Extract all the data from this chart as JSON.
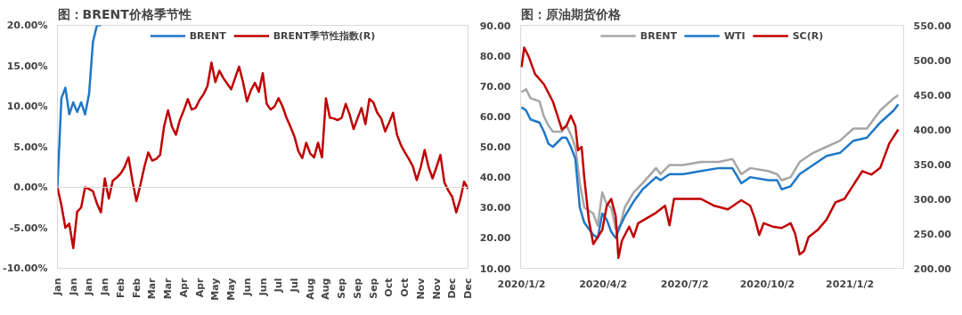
{
  "chart_data": [
    {
      "type": "line",
      "title": "图：BRENT价格季节性",
      "legend": "top",
      "grid": false,
      "ylim": [
        -10,
        20
      ],
      "categories": [
        "Jan",
        null,
        null,
        null,
        "Jan",
        null,
        null,
        null,
        "Jan",
        null,
        null,
        null,
        "Jan",
        null,
        null,
        null,
        "Feb",
        null,
        null,
        null,
        "Feb",
        null,
        null,
        null,
        "Mar",
        null,
        null,
        null,
        "Mar",
        null,
        null,
        null,
        "Apr",
        null,
        null,
        null,
        "Apr",
        null,
        null,
        null,
        "May",
        null,
        null,
        null,
        "May",
        null,
        null,
        null,
        "Jun",
        null,
        null,
        null,
        "Jun",
        null,
        null,
        null,
        "Jul",
        null,
        null,
        null,
        "Jul",
        null,
        null,
        null,
        "Aug",
        null,
        null,
        null,
        "Aug",
        null,
        null,
        null,
        "Sep",
        null,
        null,
        null,
        "Sep",
        null,
        null,
        null,
        "Sep",
        null,
        null,
        null,
        "Oct",
        null,
        null,
        null,
        "Oct",
        null,
        null,
        null,
        "Nov",
        null,
        null,
        null,
        "Nov",
        null,
        null,
        null,
        "Dec",
        null,
        null,
        null,
        "Dec"
      ],
      "yticks": [
        {
          "value": -10,
          "label": "-10.00%"
        },
        {
          "value": -5,
          "label": "-5.00%"
        },
        {
          "value": 0,
          "label": "0.00%"
        },
        {
          "value": 5,
          "label": "5.00%"
        },
        {
          "value": 10,
          "label": "10.00%"
        },
        {
          "value": 15,
          "label": "15.00%"
        },
        {
          "value": 20,
          "label": "20.00%"
        }
      ],
      "ref_lines": [
        {
          "axis": "y",
          "value": 0,
          "color": "#d9d9d9"
        }
      ],
      "series": [
        {
          "name": "BRENT",
          "color": "#1f77c8",
          "values": [
            0,
            11,
            12.3,
            9,
            10.5,
            9.3,
            10.5,
            9,
            11.5,
            18,
            20,
            20,
            null,
            null,
            null,
            null,
            null,
            null,
            null,
            null,
            null,
            null,
            null,
            null,
            null,
            null,
            null,
            null,
            null,
            null,
            null,
            null,
            null,
            null,
            null,
            null,
            null,
            null,
            null,
            null,
            null,
            null,
            null,
            null,
            null,
            null,
            null,
            null,
            null,
            null,
            null,
            null,
            null,
            null,
            null,
            null,
            null,
            null,
            null,
            null,
            null,
            null,
            null,
            null,
            null,
            null,
            null,
            null,
            null,
            null,
            null,
            null,
            null,
            null,
            null,
            null,
            null,
            null,
            null,
            null,
            null,
            null,
            null,
            null,
            null,
            null,
            null,
            null,
            null,
            null,
            null,
            null,
            null,
            null,
            null,
            null,
            null,
            null,
            null,
            null,
            null,
            null,
            null,
            null,
            null
          ]
        },
        {
          "name": "BRENT季节性指数(R)",
          "color": "#c00000",
          "values": [
            0,
            -2.2,
            -5,
            -4.5,
            -7.5,
            -3,
            -2.5,
            0,
            -0.2,
            -0.5,
            -2,
            -3.1,
            1.1,
            -1.4,
            0.8,
            1.2,
            1.7,
            2.5,
            3.7,
            0.8,
            -1.7,
            0.3,
            2.5,
            4.3,
            3.3,
            3.5,
            4,
            7.5,
            9.5,
            7.5,
            6.5,
            8.3,
            9.5,
            10.9,
            9.6,
            9.8,
            10.8,
            11.5,
            12.5,
            15.4,
            13,
            14.4,
            13.5,
            12.8,
            12.1,
            13.5,
            14.9,
            13,
            10.6,
            12,
            12.9,
            11.8,
            14.1,
            10.3,
            9.6,
            10,
            11,
            10,
            8.6,
            7.5,
            6.3,
            4.5,
            3.6,
            5.5,
            4.2,
            3.7,
            5.5,
            3.7,
            11,
            8.6,
            8.5,
            8.3,
            8.6,
            10.3,
            9,
            7.2,
            8.5,
            9.8,
            7.8,
            10.9,
            10.5,
            9.2,
            8.5,
            6.9,
            8,
            9.2,
            6.5,
            5.2,
            4.3,
            3.5,
            2.6,
            0.9,
            2.5,
            4.6,
            2.5,
            1.1,
            2.5,
            4,
            0.6,
            -0.4,
            -1.2,
            -3.1,
            -1.5,
            0.7,
            -0.2
          ]
        }
      ]
    },
    {
      "type": "line",
      "title": "图：原油期货价格",
      "legend": "top",
      "grid": false,
      "xlim": [
        "2020-01-01",
        "2021-03-03"
      ],
      "ylim": [
        10,
        90
      ],
      "y2lim": [
        200,
        550
      ],
      "xticks": [
        {
          "value": "2020-01-02",
          "label": "2020/1/2"
        },
        {
          "value": "2020-04-02",
          "label": "2020/4/2"
        },
        {
          "value": "2020-07-02",
          "label": "2020/7/2"
        },
        {
          "value": "2020-10-02",
          "label": "2020/10/2"
        },
        {
          "value": "2021-01-02",
          "label": "2021/1/2"
        }
      ],
      "yticks": [
        {
          "value": 10,
          "label": "10.00"
        },
        {
          "value": 20,
          "label": "20.00"
        },
        {
          "value": 30,
          "label": "30.00"
        },
        {
          "value": 40,
          "label": "40.00"
        },
        {
          "value": 50,
          "label": "50.00"
        },
        {
          "value": 60,
          "label": "60.00"
        },
        {
          "value": 70,
          "label": "70.00"
        },
        {
          "value": 80,
          "label": "80.00"
        },
        {
          "value": 90,
          "label": "90.00"
        }
      ],
      "y2ticks": [
        {
          "value": 200,
          "label": "200.00"
        },
        {
          "value": 250,
          "label": "250.00"
        },
        {
          "value": 300,
          "label": "300.00"
        },
        {
          "value": 350,
          "label": "350.00"
        },
        {
          "value": 400,
          "label": "400.00"
        },
        {
          "value": 450,
          "label": "450.00"
        },
        {
          "value": 500,
          "label": "500.00"
        },
        {
          "value": 550,
          "label": "550.00"
        }
      ],
      "x": [
        "2020-01-02",
        "2020-01-07",
        "2020-01-12",
        "2020-01-22",
        "2020-01-27",
        "2020-02-01",
        "2020-02-06",
        "2020-02-16",
        "2020-02-21",
        "2020-02-26",
        "2020-03-02",
        "2020-03-07",
        "2020-03-12",
        "2020-03-22",
        "2020-03-27",
        "2020-04-01",
        "2020-04-06",
        "2020-04-11",
        "2020-04-16",
        "2020-04-21",
        "2020-04-26",
        "2020-05-06",
        "2020-05-16",
        "2020-05-31",
        "2020-06-05",
        "2020-06-15",
        "2020-06-30",
        "2020-07-20",
        "2020-08-09",
        "2020-08-24",
        "2020-09-03",
        "2020-09-13",
        "2020-10-03",
        "2020-10-13",
        "2020-10-18",
        "2020-10-28",
        "2020-11-07",
        "2020-11-22",
        "2020-12-07",
        "2020-12-22",
        "2021-01-06",
        "2021-01-21",
        "2021-02-05",
        "2021-02-20",
        "2021-02-25"
      ],
      "series": [
        {
          "name": "BRENT",
          "color": "#a6a6a6",
          "values": [
            68,
            69,
            66,
            65,
            60,
            57,
            55,
            55,
            57,
            54,
            50,
            38,
            30,
            28,
            24,
            35,
            31,
            30,
            23,
            24,
            30,
            35,
            38,
            43,
            41,
            44,
            44,
            45,
            45,
            46,
            41,
            43,
            42,
            41,
            39,
            40,
            45,
            48,
            50,
            52,
            56,
            56,
            62,
            66,
            67
          ]
        },
        {
          "name": "WTI",
          "color": "#1f77c8",
          "values": [
            63,
            62,
            59,
            58,
            55,
            51,
            50,
            53,
            53,
            50,
            46,
            30,
            25,
            21,
            20,
            28,
            26,
            22,
            20,
            24,
            27,
            32,
            36,
            40,
            39,
            41,
            41,
            42,
            43,
            43,
            38,
            40,
            39,
            39,
            36,
            37,
            41,
            44,
            47,
            48,
            52,
            53,
            58,
            62,
            64
          ]
        },
        {
          "name": "SC(R)",
          "color": "#c00000",
          "axis": "y2",
          "x": [
            "2020-01-02",
            "2020-01-05",
            "2020-01-10",
            "2020-01-17",
            "2020-01-27",
            "2020-02-06",
            "2020-02-11",
            "2020-02-16",
            "2020-02-21",
            "2020-02-26",
            "2020-03-02",
            "2020-03-05",
            "2020-03-09",
            "2020-03-12",
            "2020-03-17",
            "2020-03-22",
            "2020-03-27",
            "2020-04-01",
            "2020-04-06",
            "2020-04-11",
            "2020-04-16",
            "2020-04-19",
            "2020-04-23",
            "2020-05-01",
            "2020-05-06",
            "2020-05-11",
            "2020-05-31",
            "2020-06-10",
            "2020-06-15",
            "2020-06-20",
            "2020-07-05",
            "2020-07-20",
            "2020-08-04",
            "2020-08-19",
            "2020-09-03",
            "2020-09-13",
            "2020-09-18",
            "2020-09-23",
            "2020-09-28",
            "2020-10-08",
            "2020-10-18",
            "2020-10-28",
            "2020-11-02",
            "2020-11-07",
            "2020-11-12",
            "2020-11-17",
            "2020-11-27",
            "2020-12-07",
            "2020-12-17",
            "2020-12-27",
            "2021-01-06",
            "2021-01-16",
            "2021-01-26",
            "2021-02-05",
            "2021-02-15",
            "2021-02-25"
          ],
          "values": [
            490,
            518,
            505,
            480,
            465,
            440,
            420,
            400,
            405,
            420,
            405,
            370,
            375,
            330,
            270,
            235,
            245,
            255,
            290,
            300,
            275,
            215,
            240,
            260,
            245,
            265,
            280,
            290,
            262,
            300,
            300,
            300,
            290,
            285,
            298,
            290,
            272,
            248,
            265,
            260,
            258,
            265,
            250,
            220,
            225,
            245,
            255,
            270,
            295,
            300,
            320,
            340,
            335,
            345,
            380,
            400
          ]
        }
      ]
    }
  ]
}
